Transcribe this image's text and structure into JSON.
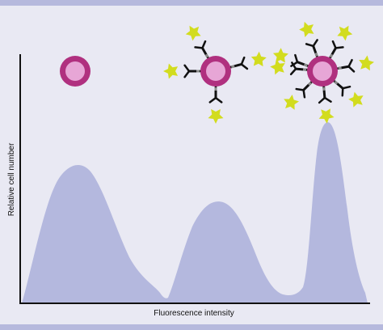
{
  "diagram": {
    "x_axis_label": "Fluorescence intensity",
    "y_axis_label": "Relative cell number",
    "colors": {
      "background": "#e9e9f3",
      "band": "#b6b9dd",
      "histogram_fill": "#b4b8de",
      "cell_ring": "#b0307f",
      "cell_core": "#e7a6d6",
      "antibody": "#111111",
      "antibody_stem": "#8a8a8a",
      "fluorophore": "#d2dc1e"
    },
    "populations": [
      {
        "name": "unlabeled cell",
        "antibodies": 0
      },
      {
        "name": "dimly labeled cell",
        "antibodies": 4
      },
      {
        "name": "brightly labeled cell",
        "antibodies": 8
      }
    ]
  }
}
